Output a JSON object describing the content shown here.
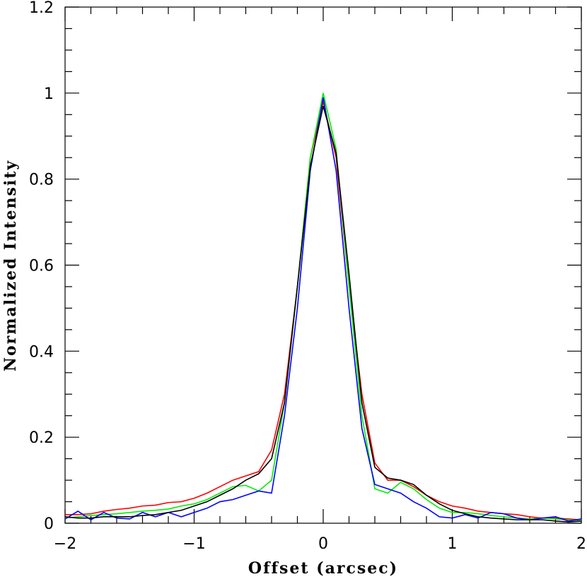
{
  "chart_data": {
    "type": "line",
    "xlabel": "Offset (arcsec)",
    "ylabel": "Normalized Intensity",
    "xlim": [
      -2,
      2
    ],
    "ylim": [
      0,
      1.2
    ],
    "xticks": [
      {
        "value": -2,
        "label": "−2"
      },
      {
        "value": -1,
        "label": "−1"
      },
      0,
      1,
      2
    ],
    "yticks": [
      0,
      0.2,
      0.4,
      0.6,
      0.8,
      1,
      1.2
    ],
    "xminorticks": [
      -1.8,
      -1.6,
      -1.4,
      -1.2,
      -0.8,
      -0.6,
      -0.4,
      -0.2,
      0.2,
      0.4,
      0.6,
      0.8,
      1.2,
      1.4,
      1.6,
      1.8
    ],
    "yminorticks": [
      0.05,
      0.1,
      0.15,
      0.25,
      0.3,
      0.35,
      0.45,
      0.5,
      0.55,
      0.65,
      0.7,
      0.75,
      0.85,
      0.9,
      0.95,
      1.05,
      1.1,
      1.15
    ],
    "x": [
      -2,
      -1.9,
      -1.8,
      -1.7,
      -1.6,
      -1.5,
      -1.4,
      -1.3,
      -1.2,
      -1.1,
      -1,
      -0.9,
      -0.8,
      -0.7,
      -0.6,
      -0.5,
      -0.4,
      -0.3,
      -0.2,
      -0.1,
      0,
      0.1,
      0.2,
      0.3,
      0.4,
      0.5,
      0.6,
      0.7,
      0.8,
      0.9,
      1,
      1.1,
      1.2,
      1.3,
      1.4,
      1.5,
      1.6,
      1.7,
      1.8,
      1.9,
      2
    ],
    "series": [
      {
        "color": "#ff0000",
        "values": [
          0.02,
          0.02,
          0.022,
          0.028,
          0.032,
          0.035,
          0.04,
          0.042,
          0.048,
          0.05,
          0.058,
          0.07,
          0.085,
          0.1,
          0.11,
          0.12,
          0.17,
          0.3,
          0.55,
          0.85,
          0.98,
          0.85,
          0.55,
          0.3,
          0.14,
          0.1,
          0.1,
          0.085,
          0.065,
          0.05,
          0.04,
          0.035,
          0.028,
          0.025,
          0.022,
          0.02,
          0.015,
          0.012,
          0.012,
          0.01,
          0.008
        ]
      },
      {
        "color": "#00ee00",
        "values": [
          0.012,
          0.015,
          0.018,
          0.02,
          0.022,
          0.025,
          0.028,
          0.03,
          0.033,
          0.04,
          0.045,
          0.055,
          0.07,
          0.085,
          0.088,
          0.075,
          0.1,
          0.28,
          0.55,
          0.85,
          1.0,
          0.87,
          0.55,
          0.25,
          0.08,
          0.07,
          0.095,
          0.08,
          0.055,
          0.035,
          0.025,
          0.025,
          0.022,
          0.018,
          0.015,
          0.012,
          0.01,
          0.012,
          0.01,
          0.008,
          0.007
        ]
      },
      {
        "color": "#0000ff",
        "values": [
          0.01,
          0.028,
          0.008,
          0.025,
          0.012,
          0.01,
          0.025,
          0.015,
          0.025,
          0.015,
          0.025,
          0.035,
          0.05,
          0.055,
          0.065,
          0.075,
          0.07,
          0.25,
          0.5,
          0.82,
          0.99,
          0.82,
          0.5,
          0.22,
          0.09,
          0.08,
          0.07,
          0.05,
          0.035,
          0.015,
          0.012,
          0.02,
          0.012,
          0.025,
          0.022,
          0.012,
          0.008,
          0.012,
          0.015,
          0.005,
          0.01
        ]
      },
      {
        "color": "#000000",
        "values": [
          0.015,
          0.012,
          0.012,
          0.015,
          0.015,
          0.015,
          0.018,
          0.02,
          0.025,
          0.03,
          0.04,
          0.05,
          0.065,
          0.08,
          0.1,
          0.115,
          0.15,
          0.28,
          0.55,
          0.83,
          0.97,
          0.86,
          0.58,
          0.28,
          0.13,
          0.105,
          0.1,
          0.09,
          0.065,
          0.045,
          0.03,
          0.022,
          0.015,
          0.012,
          0.01,
          0.008,
          0.008,
          0.008,
          0.005,
          0.003,
          0.005
        ]
      }
    ]
  }
}
